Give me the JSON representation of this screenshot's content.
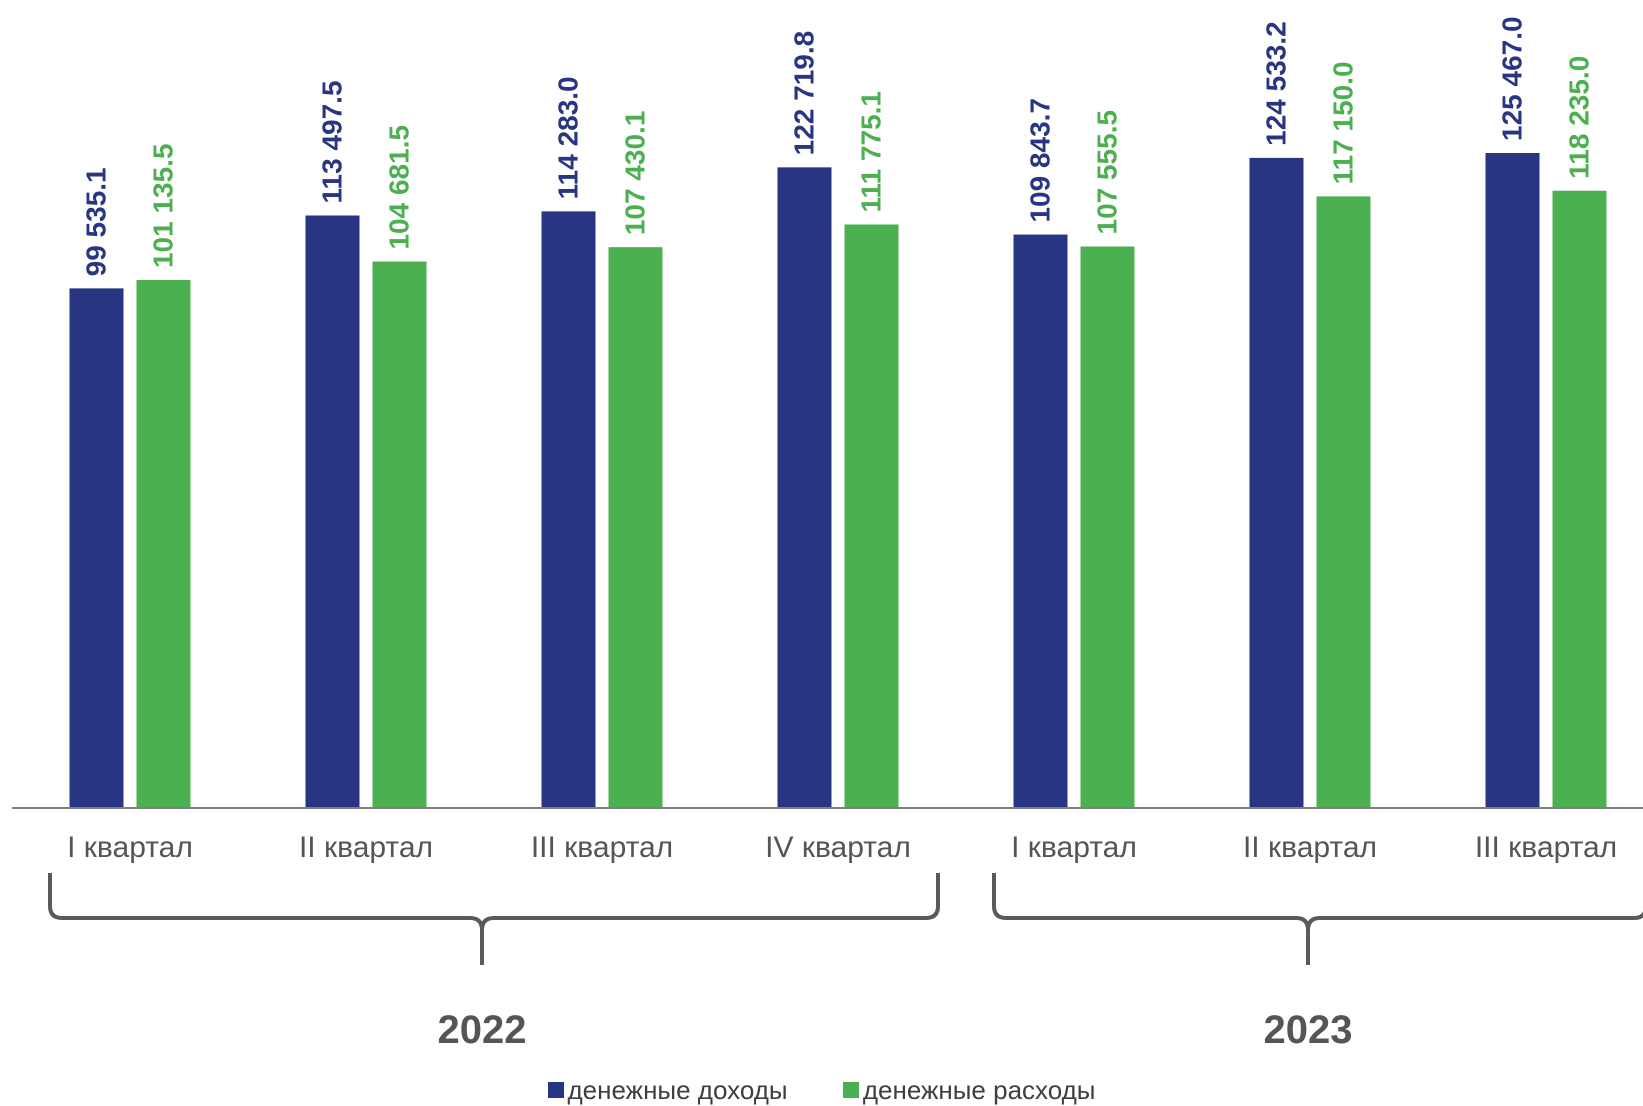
{
  "chart_data": {
    "type": "bar",
    "categories": [
      "I квартал",
      "II квартал",
      "III квартал",
      "IV квартал",
      "I квартал",
      "II квартал",
      "III квартал"
    ],
    "groups": [
      {
        "label": "2022",
        "from": 0,
        "to": 3
      },
      {
        "label": "2023",
        "from": 4,
        "to": 6
      }
    ],
    "series": [
      {
        "name": "денежные доходы",
        "color": "#283583",
        "values": [
          99535.1,
          113497.5,
          114283.0,
          122719.8,
          109843.7,
          124533.2,
          125467.0
        ],
        "labels": [
          "99 535.1",
          "113 497.5",
          "114 283.0",
          "122 719.8",
          "109 843.7",
          "124 533.2",
          "125 467.0"
        ]
      },
      {
        "name": "денежные расходы",
        "color": "#4caf50",
        "values": [
          101135.5,
          104681.5,
          107430.1,
          111775.1,
          107555.5,
          117150.0,
          118235.0
        ],
        "labels": [
          "101 135.5",
          "104 681.5",
          "107 430.1",
          "111 775.1",
          "107 555.5",
          "117 150.0",
          "118 235.0"
        ]
      }
    ],
    "title": "",
    "xlabel": "",
    "ylabel": "",
    "ylim": [
      0,
      125467.0
    ],
    "grid": false,
    "legend_position": "bottom"
  }
}
